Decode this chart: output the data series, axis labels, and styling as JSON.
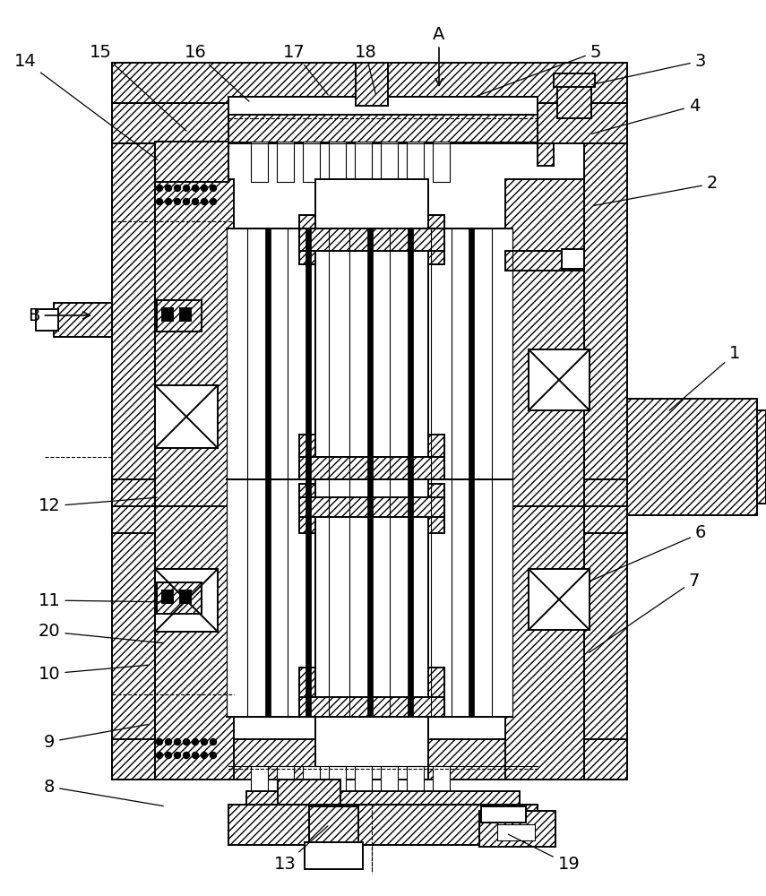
{
  "bg_color": "#ffffff",
  "line_color": "#000000",
  "lw_main": 1.4,
  "lw_thin": 0.8,
  "hatch_density": "////",
  "label_fontsize": 14,
  "annotations": [
    [
      "1",
      820,
      395,
      745,
      460
    ],
    [
      "2",
      795,
      205,
      660,
      230
    ],
    [
      "3",
      782,
      68,
      658,
      95
    ],
    [
      "4",
      775,
      118,
      658,
      150
    ],
    [
      "5",
      665,
      58,
      530,
      108
    ],
    [
      "6",
      782,
      595,
      655,
      650
    ],
    [
      "7",
      775,
      648,
      655,
      730
    ],
    [
      "8",
      55,
      878,
      185,
      900
    ],
    [
      "9",
      55,
      828,
      168,
      808
    ],
    [
      "10",
      55,
      752,
      168,
      742
    ],
    [
      "11",
      55,
      670,
      195,
      672
    ],
    [
      "12",
      55,
      565,
      178,
      555
    ],
    [
      "13",
      318,
      965,
      368,
      920
    ],
    [
      "14",
      28,
      68,
      178,
      180
    ],
    [
      "15",
      112,
      58,
      210,
      148
    ],
    [
      "16",
      218,
      58,
      280,
      115
    ],
    [
      "17",
      328,
      58,
      368,
      108
    ],
    [
      "18",
      408,
      58,
      420,
      108
    ],
    [
      "19",
      635,
      965,
      565,
      930
    ],
    [
      "20",
      55,
      705,
      185,
      718
    ]
  ],
  "arrow_A": [
    490,
    38,
    490,
    100
  ],
  "arrow_B": [
    38,
    352,
    105,
    352
  ]
}
